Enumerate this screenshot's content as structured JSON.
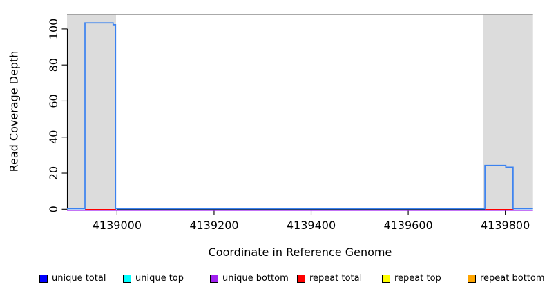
{
  "figure": {
    "xlabel": "Coordinate in Reference Genome",
    "ylabel": "Read Coverage Depth"
  },
  "legend": {
    "items": [
      {
        "label": "unique total",
        "color": "#0000FF"
      },
      {
        "label": "unique top",
        "color": "#00FFFF"
      },
      {
        "label": "unique bottom",
        "color": "#A020F0"
      },
      {
        "label": "repeat total",
        "color": "#FF0000"
      },
      {
        "label": "repeat top",
        "color": "#FFFF00"
      },
      {
        "label": "repeat bottom",
        "color": "#FFA500"
      }
    ]
  },
  "chart_data": {
    "type": "line",
    "title": "",
    "xlabel": "Coordinate in Reference Genome",
    "ylabel": "Read Coverage Depth",
    "xlim": [
      4138897,
      4139857
    ],
    "ylim": [
      0,
      108
    ],
    "x_ticks": [
      4139000,
      4139200,
      4139400,
      4139600,
      4139800
    ],
    "y_ticks": [
      0,
      20,
      40,
      60,
      80,
      100
    ],
    "grid": false,
    "legend_position": "bottom",
    "top_border_color": "#8d8d8d",
    "background_regions": {
      "color": "#dcdcdc",
      "ranges": [
        [
          4138897,
          4138998
        ],
        [
          4139755,
          4139857
        ]
      ]
    },
    "series": [
      {
        "name": "unique bottom",
        "color": "#A020F0",
        "lw": 1.5,
        "dy": 1.6,
        "segments": [
          [
            4138897,
            4139857,
            0
          ]
        ]
      },
      {
        "name": "repeat total",
        "color": "#FF0000",
        "lw": 1.3,
        "dy": 0.4,
        "segments": [
          [
            4138934,
            4138998,
            0
          ],
          [
            4139758,
            4139817,
            0
          ]
        ]
      },
      {
        "name": "unique total",
        "color": "#3B82F0",
        "lw": 1.7,
        "dy": -0.8,
        "steps": [
          [
            4138897,
            0
          ],
          [
            4138934,
            103
          ],
          [
            4138992,
            102
          ],
          [
            4138997,
            0
          ],
          [
            4139758,
            24
          ],
          [
            4139801,
            23
          ],
          [
            4139816,
            0
          ]
        ]
      }
    ]
  }
}
